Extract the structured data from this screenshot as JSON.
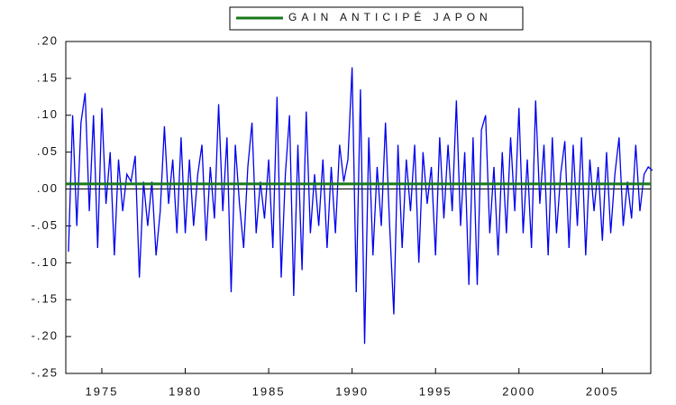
{
  "chart_data": {
    "type": "line",
    "xlim": [
      1972.84,
      2007.9
    ],
    "xticks": [
      1975,
      1980,
      1985,
      1990,
      1995,
      2000,
      2005
    ],
    "ylim": [
      -0.25,
      0.2
    ],
    "yticks": [
      {
        "value": 0.2,
        "label": ".20"
      },
      {
        "value": 0.15,
        "label": ".15"
      },
      {
        "value": 0.1,
        "label": ".10"
      },
      {
        "value": 0.05,
        "label": ".05"
      },
      {
        "value": 0,
        "label": ".00"
      },
      {
        "value": -0.05,
        "label": "-.05"
      },
      {
        "value": -0.1,
        "label": "-.10"
      },
      {
        "value": -0.15,
        "label": "-.15"
      },
      {
        "value": -0.2,
        "label": "-.20"
      },
      {
        "value": -0.25,
        "label": "-.25"
      }
    ],
    "legend": "top",
    "series": [
      {
        "color": "#0000ee",
        "x": [
          1973,
          1973.25,
          1973.5,
          1973.75,
          1974,
          1974.25,
          1974.5,
          1974.75,
          1975,
          1975.25,
          1975.5,
          1975.75,
          1976,
          1976.25,
          1976.5,
          1976.75,
          1977,
          1977.25,
          1977.5,
          1977.75,
          1978,
          1978.25,
          1978.5,
          1978.75,
          1979,
          1979.25,
          1979.5,
          1979.75,
          1980,
          1980.25,
          1980.5,
          1980.75,
          1981,
          1981.25,
          1981.5,
          1981.75,
          1982,
          1982.25,
          1982.5,
          1982.75,
          1983,
          1983.25,
          1983.5,
          1983.75,
          1984,
          1984.25,
          1984.5,
          1984.75,
          1985,
          1985.25,
          1985.5,
          1985.75,
          1986,
          1986.25,
          1986.5,
          1986.75,
          1987,
          1987.25,
          1987.5,
          1987.75,
          1988,
          1988.25,
          1988.5,
          1988.75,
          1989,
          1989.25,
          1989.5,
          1989.75,
          1990,
          1990.25,
          1990.5,
          1990.75,
          1991,
          1991.25,
          1991.5,
          1991.75,
          1992,
          1992.25,
          1992.5,
          1992.75,
          1993,
          1993.25,
          1993.5,
          1993.75,
          1994,
          1994.25,
          1994.5,
          1994.75,
          1995,
          1995.25,
          1995.5,
          1995.75,
          1996,
          1996.25,
          1996.5,
          1996.75,
          1997,
          1997.25,
          1997.5,
          1997.75,
          1998,
          1998.25,
          1998.5,
          1998.75,
          1999,
          1999.25,
          1999.5,
          1999.75,
          2000,
          2000.25,
          2000.5,
          2000.75,
          2001,
          2001.25,
          2001.5,
          2001.75,
          2002,
          2002.25,
          2002.5,
          2002.75,
          2003,
          2003.25,
          2003.5,
          2003.75,
          2004,
          2004.25,
          2004.5,
          2004.75,
          2005,
          2005.25,
          2005.5,
          2005.75,
          2006,
          2006.25,
          2006.5,
          2006.75,
          2007,
          2007.25,
          2007.5,
          2007.75,
          2008
        ],
        "values": [
          -0.085,
          0.1,
          -0.05,
          0.09,
          0.13,
          -0.03,
          0.1,
          -0.08,
          0.11,
          -0.02,
          0.05,
          -0.09,
          0.04,
          -0.03,
          0.02,
          0.01,
          0.045,
          -0.12,
          0.01,
          -0.05,
          0.01,
          -0.09,
          -0.03,
          0.085,
          -0.02,
          0.04,
          -0.06,
          0.07,
          -0.06,
          0.04,
          -0.05,
          0.02,
          0.06,
          -0.07,
          0.03,
          -0.04,
          0.115,
          -0.03,
          0.07,
          -0.14,
          0.06,
          -0.02,
          -0.08,
          0.03,
          0.09,
          -0.06,
          0.01,
          -0.04,
          0.04,
          -0.08,
          0.125,
          -0.12,
          0.02,
          0.1,
          -0.145,
          0.06,
          -0.11,
          0.105,
          -0.06,
          0.02,
          -0.05,
          0.04,
          -0.08,
          0.03,
          -0.06,
          0.06,
          0.01,
          0.04,
          0.165,
          -0.14,
          0.135,
          -0.21,
          0.07,
          -0.09,
          0.03,
          -0.05,
          0.09,
          -0.05,
          -0.17,
          0.06,
          -0.08,
          0.04,
          -0.03,
          0.06,
          -0.1,
          0.05,
          -0.02,
          0.03,
          -0.09,
          0.07,
          -0.04,
          0.06,
          -0.03,
          0.12,
          -0.05,
          0.05,
          -0.13,
          0.07,
          -0.13,
          0.08,
          0.1,
          -0.06,
          0.03,
          -0.09,
          0.05,
          -0.06,
          0.07,
          -0.03,
          0.11,
          -0.06,
          0.04,
          -0.08,
          0.12,
          -0.02,
          0.06,
          -0.09,
          0.07,
          -0.06,
          0.02,
          0.065,
          -0.08,
          0.06,
          -0.05,
          0.07,
          -0.09,
          0.04,
          -0.03,
          0.03,
          -0.07,
          0.05,
          -0.06,
          0.02,
          0.07,
          -0.05,
          0.01,
          -0.04,
          0.06,
          -0.03,
          0.02,
          0.03,
          0.025
        ]
      },
      {
        "name": "GAIN ANTICIPÉ JAPON",
        "color": "#1a7a1a",
        "x": [
          1972.84,
          2007.9
        ],
        "values": [
          0.007,
          0.007
        ]
      }
    ]
  }
}
